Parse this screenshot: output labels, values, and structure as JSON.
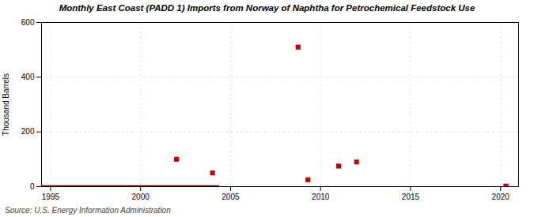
{
  "chart_data": {
    "type": "scatter",
    "title": "Monthly East Coast (PADD 1) Imports from Norway of Naphtha for Petrochemical Feedstock Use",
    "ylabel": "Thousand Barrels",
    "source": "Source: U.S. Energy Information Administration",
    "series": [
      {
        "type": "line",
        "color": "#8b0000",
        "x": [
          1994.5,
          2004.3
        ],
        "values": [
          0,
          0
        ]
      },
      {
        "type": "scatter",
        "color": "#cc0000",
        "marker": "square",
        "x": [
          2002.0,
          2004.0,
          2008.75,
          2009.3,
          2011.0,
          2012.0,
          2020.3
        ],
        "values": [
          100,
          50,
          510,
          25,
          75,
          90,
          2
        ]
      }
    ],
    "xlim": [
      1994.5,
      2021.0
    ],
    "xticks": [
      1995,
      2000,
      2005,
      2010,
      2015,
      2020
    ],
    "ylim": [
      0,
      600
    ],
    "yticks": [
      0,
      200,
      400,
      600
    ],
    "grid": true
  }
}
